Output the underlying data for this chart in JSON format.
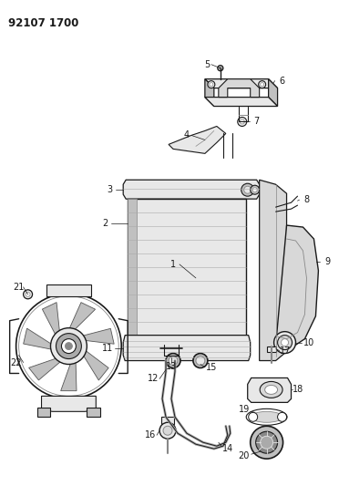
{
  "title": "92107 1700",
  "bg_color": "#ffffff",
  "line_color": "#1a1a1a",
  "fig_width": 3.83,
  "fig_height": 5.33,
  "dpi": 100
}
